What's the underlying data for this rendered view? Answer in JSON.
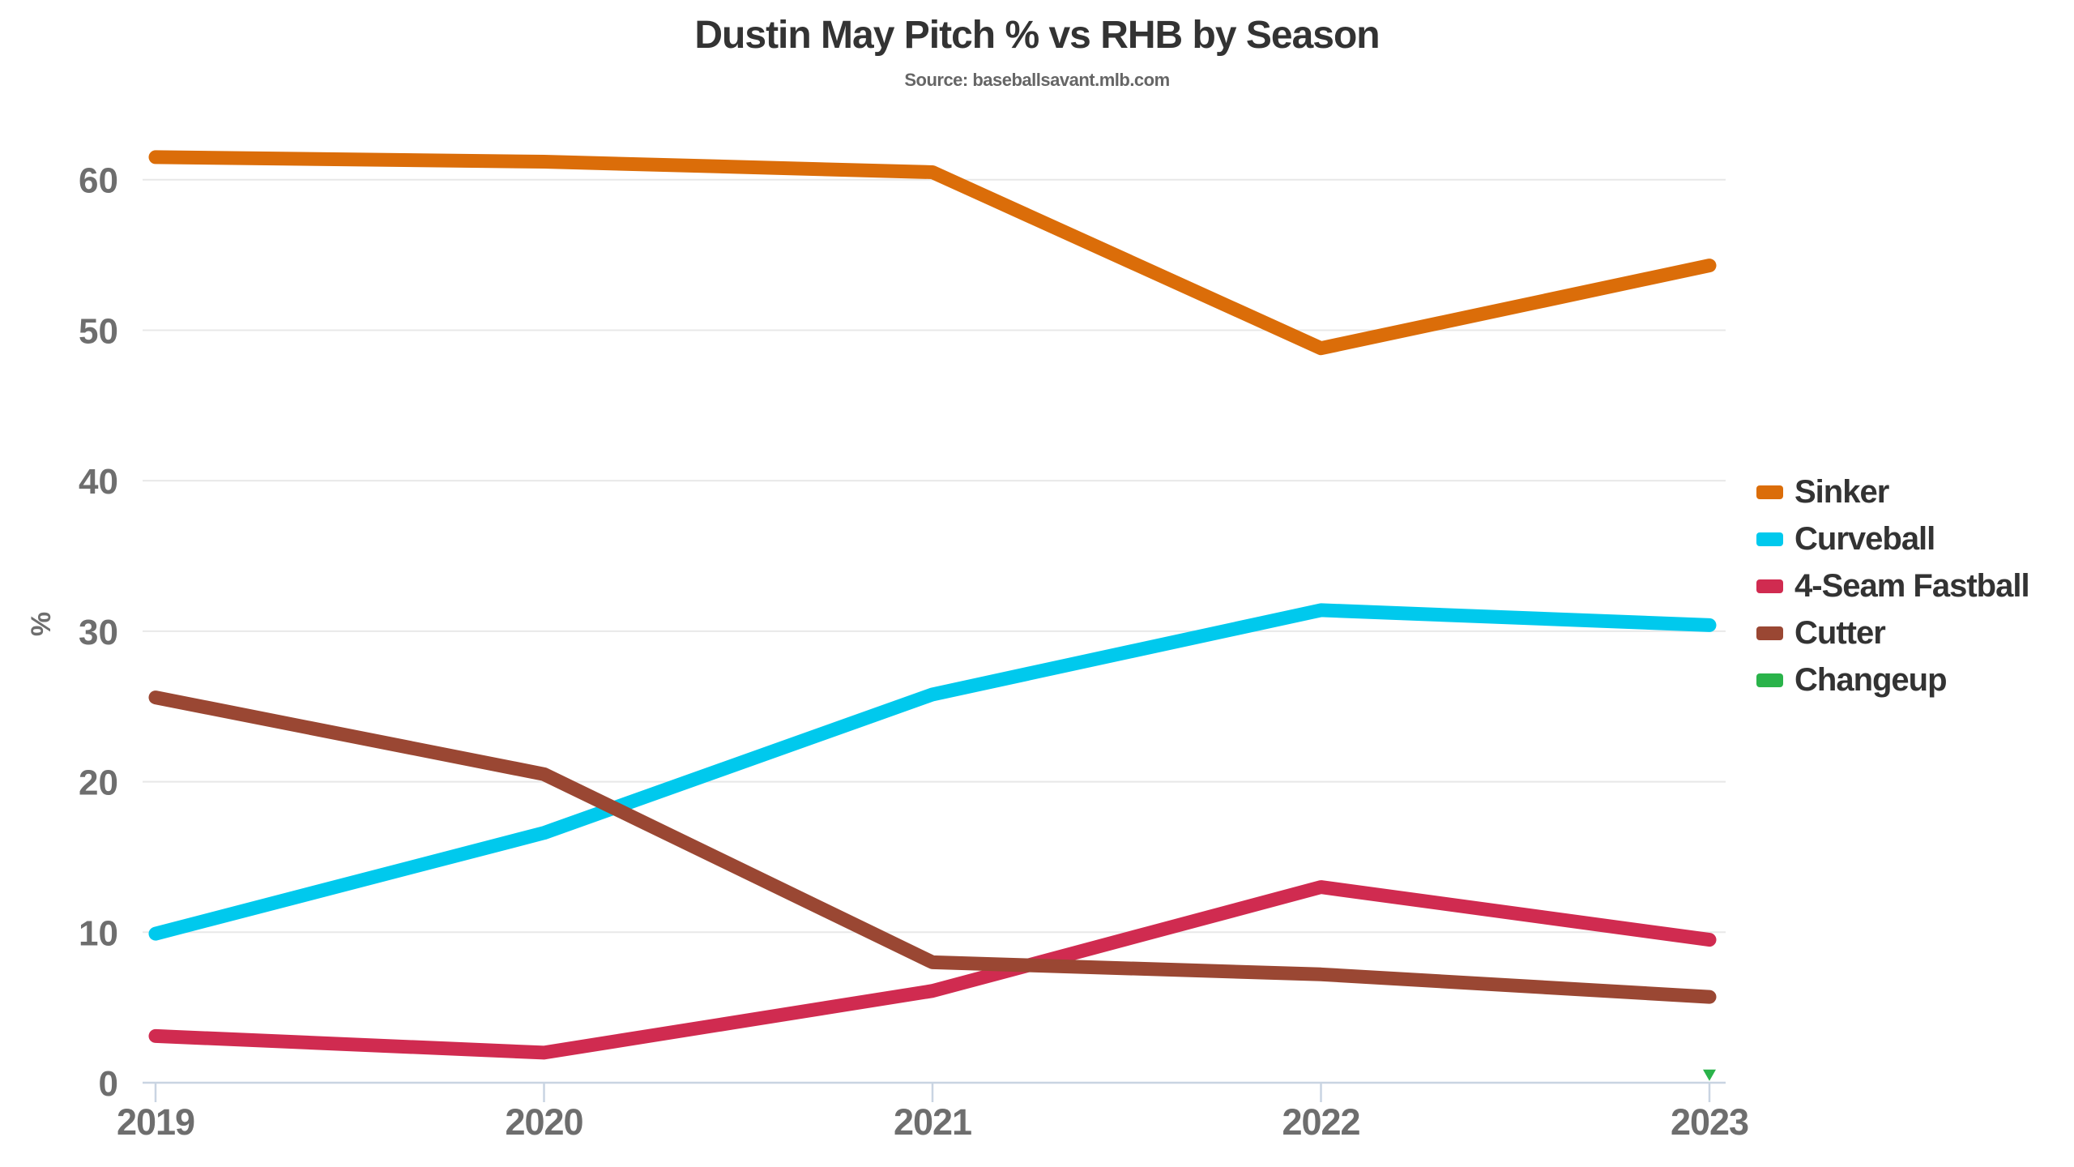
{
  "title": "Dustin May Pitch % vs RHB by Season",
  "subtitle": "Source: baseballsavant.mlb.com",
  "chart_data": {
    "type": "line",
    "categories": [
      "2019",
      "2020",
      "2021",
      "2022",
      "2023"
    ],
    "series": [
      {
        "name": "Sinker",
        "color": "#DB6D09",
        "values": [
          61.5,
          61.2,
          60.5,
          48.8,
          54.3
        ]
      },
      {
        "name": "Curveball",
        "color": "#00C9ED",
        "values": [
          9.9,
          16.6,
          25.8,
          31.4,
          30.4
        ]
      },
      {
        "name": "4-Seam Fastball",
        "color": "#D02B50",
        "values": [
          3.1,
          2.0,
          6.1,
          13.0,
          9.5
        ]
      },
      {
        "name": "Cutter",
        "color": "#9A4733",
        "values": [
          25.6,
          20.5,
          8.0,
          7.2,
          5.7
        ]
      },
      {
        "name": "Changeup",
        "color": "#2AB34A",
        "values": [
          null,
          null,
          null,
          null,
          0.5
        ]
      }
    ],
    "xlabel": "",
    "ylabel": "%",
    "yticks": [
      0,
      10,
      20,
      30,
      40,
      50,
      60
    ],
    "ylim": [
      0,
      65
    ],
    "grid": "horizontal",
    "legend_position": "right",
    "single_point_marker": "triangle-down"
  },
  "styles": {
    "grid_color": "#E8E8E8",
    "axis_color": "#C9D4E2",
    "tick_label_color": "#6E6E6E",
    "axis_title_color": "#6E6E6E",
    "title_color": "#333333",
    "subtitle_color": "#666666",
    "line_width": 17
  }
}
